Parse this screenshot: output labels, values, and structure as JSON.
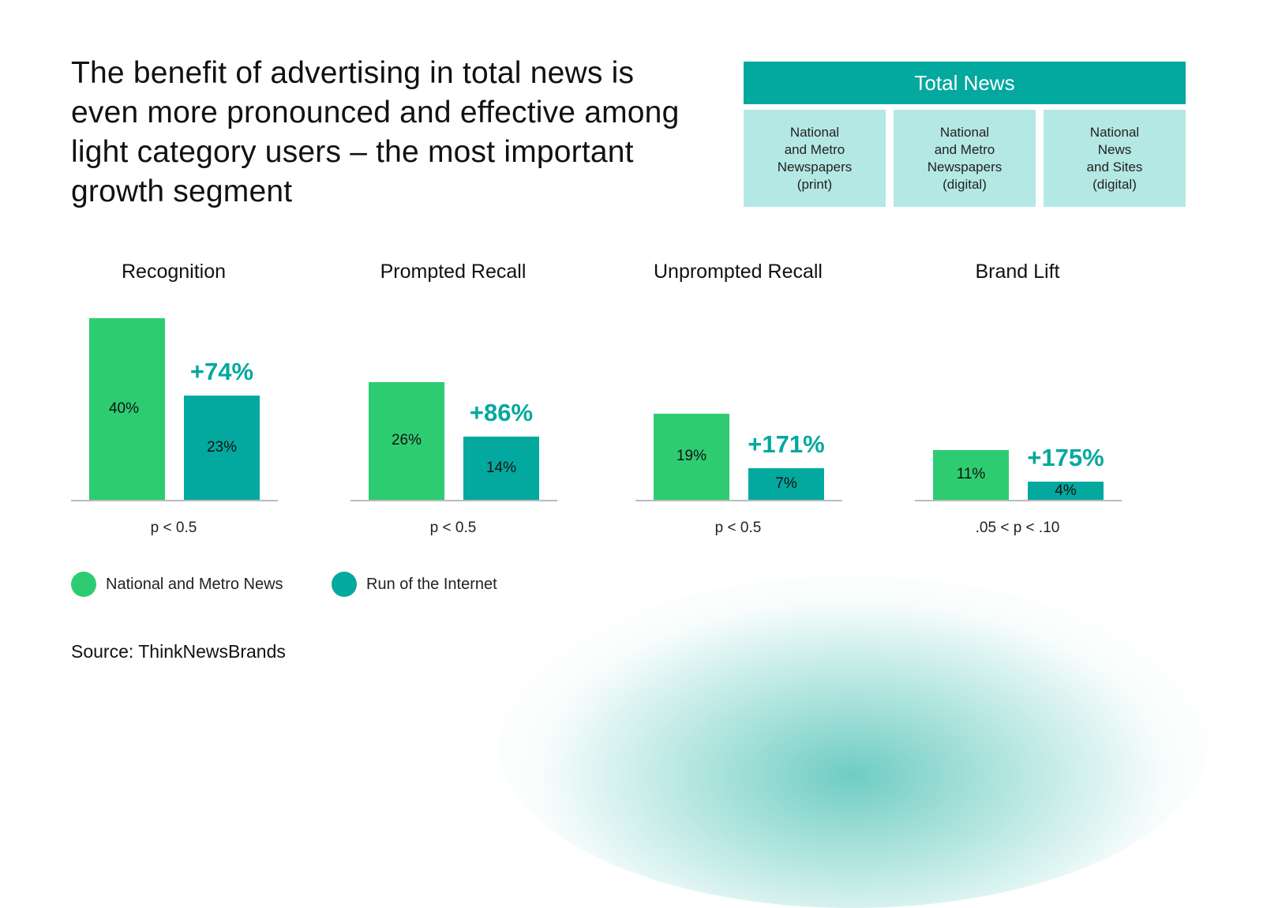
{
  "headline": "The benefit of advertising in total news is even more pronounced and effective among light category users – the most important growth segment",
  "total_news": {
    "header": "Total News",
    "cells": [
      "National\nand Metro\nNewspapers\n(print)",
      "National\nand Metro\nNewspapers\n(digital)",
      "National\nNews\nand Sites\n(digital)"
    ]
  },
  "colors": {
    "national": "#2ecc71",
    "run_of_internet": "#03a89e",
    "uplift": "#03a89e",
    "header_bg": "#03a89e",
    "cell_bg": "#b4e8e4"
  },
  "chart_data": [
    {
      "type": "bar",
      "title": "Recognition",
      "categories": [
        "National and Metro News",
        "Run of the Internet"
      ],
      "values": [
        40,
        23
      ],
      "labels": [
        "40%",
        "23%"
      ],
      "uplift": "+74%",
      "note": "p < 0.5"
    },
    {
      "type": "bar",
      "title": "Prompted Recall",
      "categories": [
        "National and Metro News",
        "Run of the Internet"
      ],
      "values": [
        26,
        14
      ],
      "labels": [
        "26%",
        "14%"
      ],
      "uplift": "+86%",
      "note": "p < 0.5"
    },
    {
      "type": "bar",
      "title": "Unprompted Recall",
      "categories": [
        "National and Metro News",
        "Run of the Internet"
      ],
      "values": [
        19,
        7
      ],
      "labels": [
        "19%",
        "7%"
      ],
      "uplift": "+171%",
      "note": "p < 0.5"
    },
    {
      "type": "bar",
      "title": "Brand Lift",
      "categories": [
        "National and Metro News",
        "Run of the Internet"
      ],
      "values": [
        11,
        4
      ],
      "labels": [
        "11%",
        "4%"
      ],
      "uplift": "+175%",
      "note": ".05 < p < .10"
    }
  ],
  "legend": [
    {
      "label": "National and Metro News",
      "color": "#2ecc71"
    },
    {
      "label": "Run of the Internet",
      "color": "#03a89e"
    }
  ],
  "source": "Source: ThinkNewsBrands"
}
